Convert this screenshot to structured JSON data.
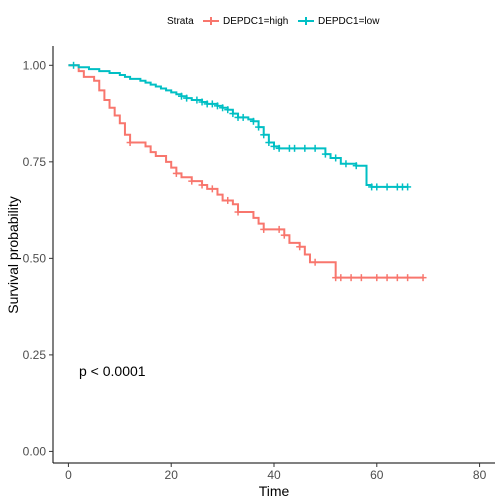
{
  "chart_data": {
    "type": "line",
    "subtype": "kaplan-meier step curve with censor marks",
    "xlabel": "Time",
    "ylabel": "Survival probability",
    "xlim": [
      -3,
      83
    ],
    "ylim": [
      -0.03,
      1.05
    ],
    "x_ticks": [
      0,
      20,
      40,
      60,
      80
    ],
    "x_tick_labels": [
      "0",
      "20",
      "40",
      "60",
      "80"
    ],
    "y_ticks": [
      0,
      0.25,
      0.5,
      0.75,
      1.0
    ],
    "y_tick_labels": [
      "0.00",
      "0.25",
      "0.50",
      "0.75",
      "1.00"
    ],
    "grid": false,
    "legend": {
      "position": "top",
      "title": "Strata",
      "entries": [
        "DEPDC1=high",
        "DEPDC1=low"
      ]
    },
    "annotation": {
      "text": "p < 0.0001",
      "x": 2,
      "y": 0.19
    },
    "series": [
      {
        "name": "DEPDC1=high",
        "color": "#F8766D",
        "steps": [
          [
            0,
            1.0
          ],
          [
            2,
            0.985
          ],
          [
            3,
            0.97
          ],
          [
            5,
            0.96
          ],
          [
            6,
            0.935
          ],
          [
            7,
            0.91
          ],
          [
            8,
            0.89
          ],
          [
            9,
            0.87
          ],
          [
            10,
            0.85
          ],
          [
            11,
            0.82
          ],
          [
            12,
            0.8
          ],
          [
            15,
            0.79
          ],
          [
            16,
            0.775
          ],
          [
            17,
            0.765
          ],
          [
            19,
            0.75
          ],
          [
            20,
            0.735
          ],
          [
            21,
            0.72
          ],
          [
            22,
            0.71
          ],
          [
            24,
            0.7
          ],
          [
            26,
            0.69
          ],
          [
            27,
            0.68
          ],
          [
            29,
            0.665
          ],
          [
            30,
            0.65
          ],
          [
            32,
            0.64
          ],
          [
            33,
            0.62
          ],
          [
            36,
            0.605
          ],
          [
            37,
            0.59
          ],
          [
            38,
            0.575
          ],
          [
            42,
            0.56
          ],
          [
            43,
            0.54
          ],
          [
            45,
            0.53
          ],
          [
            46,
            0.51
          ],
          [
            47,
            0.49
          ],
          [
            52,
            0.45
          ],
          [
            69,
            0.45
          ]
        ],
        "censor_x": [
          12,
          21,
          24,
          26,
          28,
          31,
          33,
          38,
          41,
          42,
          45,
          48,
          52,
          53,
          55,
          57,
          60,
          62,
          64,
          66,
          69
        ]
      },
      {
        "name": "DEPDC1=low",
        "color": "#00BFC4",
        "steps": [
          [
            0,
            1.0
          ],
          [
            2,
            0.995
          ],
          [
            4,
            0.99
          ],
          [
            6,
            0.985
          ],
          [
            8,
            0.98
          ],
          [
            10,
            0.975
          ],
          [
            11,
            0.97
          ],
          [
            12,
            0.965
          ],
          [
            14,
            0.96
          ],
          [
            15,
            0.955
          ],
          [
            16,
            0.95
          ],
          [
            17,
            0.945
          ],
          [
            18,
            0.94
          ],
          [
            19,
            0.935
          ],
          [
            20,
            0.93
          ],
          [
            21,
            0.925
          ],
          [
            22,
            0.92
          ],
          [
            23,
            0.915
          ],
          [
            24,
            0.91
          ],
          [
            26,
            0.905
          ],
          [
            27,
            0.9
          ],
          [
            29,
            0.895
          ],
          [
            30,
            0.89
          ],
          [
            31,
            0.885
          ],
          [
            32,
            0.875
          ],
          [
            33,
            0.865
          ],
          [
            35,
            0.86
          ],
          [
            36,
            0.855
          ],
          [
            37,
            0.84
          ],
          [
            38,
            0.82
          ],
          [
            39,
            0.8
          ],
          [
            40,
            0.79
          ],
          [
            41,
            0.785
          ],
          [
            50,
            0.77
          ],
          [
            51,
            0.76
          ],
          [
            53,
            0.745
          ],
          [
            56,
            0.74
          ],
          [
            58,
            0.69
          ],
          [
            59,
            0.685
          ],
          [
            66,
            0.685
          ]
        ],
        "censor_x": [
          1,
          22,
          23,
          25,
          26,
          27,
          28,
          29,
          30,
          31,
          32,
          33,
          34,
          36,
          37,
          38,
          39,
          40,
          41,
          43,
          44,
          46,
          48,
          50,
          52,
          54,
          56,
          59,
          60,
          62,
          64,
          65,
          66
        ]
      }
    ]
  }
}
